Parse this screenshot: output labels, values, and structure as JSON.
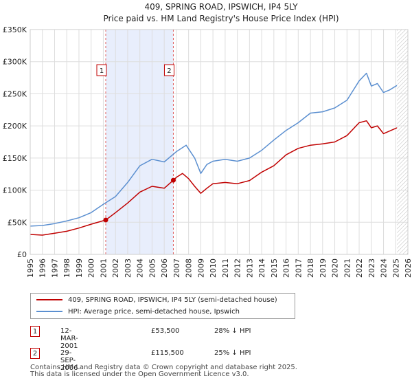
{
  "chart_data": {
    "type": "line",
    "title": "409, SPRING ROAD, IPSWICH, IP4 5LY",
    "subtitle": "Price paid vs. HM Land Registry's House Price Index (HPI)",
    "xlim": [
      1995,
      2026
    ],
    "ylim": [
      0,
      350000
    ],
    "x_ticks": [
      "1995",
      "1996",
      "1997",
      "1998",
      "1999",
      "2000",
      "2001",
      "2002",
      "2003",
      "2004",
      "2005",
      "2006",
      "2007",
      "2008",
      "2009",
      "2010",
      "2011",
      "2012",
      "2013",
      "2014",
      "2015",
      "2016",
      "2017",
      "2018",
      "2019",
      "2020",
      "2021",
      "2022",
      "2023",
      "2024",
      "2025",
      "2026"
    ],
    "y_ticks": [
      {
        "value": 0,
        "label": "£0"
      },
      {
        "value": 50000,
        "label": "£50K"
      },
      {
        "value": 100000,
        "label": "£100K"
      },
      {
        "value": 150000,
        "label": "£150K"
      },
      {
        "value": 200000,
        "label": "£200K"
      },
      {
        "value": 250000,
        "label": "£250K"
      },
      {
        "value": 300000,
        "label": "£300K"
      },
      {
        "value": 350000,
        "label": "£350K"
      }
    ],
    "grid": true,
    "shaded_period": [
      2001.2,
      2006.75
    ],
    "forecast_hatch_start": 2025.1,
    "series": [
      {
        "name": "409, SPRING ROAD, IPSWICH, IP4 5LY (semi-detached house)",
        "color": "#c00000",
        "x": [
          1995,
          1996,
          1997,
          1998,
          1999,
          2000,
          2001.2,
          2002,
          2003,
          2004,
          2005,
          2006,
          2006.75,
          2007,
          2007.5,
          2008,
          2008.5,
          2009,
          2009.5,
          2010,
          2011,
          2012,
          2013,
          2014,
          2015,
          2016,
          2017,
          2018,
          2019,
          2020,
          2021,
          2022,
          2022.6,
          2023,
          2023.5,
          2024,
          2024.5,
          2025.1
        ],
        "y": [
          31000,
          30000,
          33000,
          36000,
          41000,
          47000,
          53500,
          65000,
          80000,
          97000,
          106000,
          103000,
          115500,
          120000,
          126000,
          118000,
          106000,
          95000,
          103000,
          110000,
          112000,
          110000,
          115000,
          128000,
          138000,
          155000,
          165000,
          170000,
          172000,
          175000,
          185000,
          205000,
          208000,
          197000,
          200000,
          188000,
          192000,
          197000
        ]
      },
      {
        "name": "HPI: Average price, semi-detached house, Ipswich",
        "color": "#5b8fd0",
        "x": [
          1995,
          1996,
          1997,
          1998,
          1999,
          2000,
          2001,
          2002,
          2003,
          2004,
          2005,
          2006,
          2007,
          2007.8,
          2008.5,
          2009,
          2009.5,
          2010,
          2011,
          2012,
          2013,
          2014,
          2015,
          2016,
          2017,
          2018,
          2019,
          2020,
          2021,
          2022,
          2022.6,
          2023,
          2023.5,
          2024,
          2024.5,
          2025.1
        ],
        "y": [
          44000,
          45000,
          48000,
          52000,
          57000,
          65000,
          78000,
          90000,
          112000,
          138000,
          148000,
          144000,
          160000,
          170000,
          150000,
          126000,
          140000,
          145000,
          148000,
          145000,
          150000,
          162000,
          178000,
          193000,
          205000,
          220000,
          222000,
          228000,
          240000,
          270000,
          282000,
          262000,
          266000,
          252000,
          256000,
          263000
        ]
      }
    ],
    "sale_markers": [
      {
        "label": "1",
        "x": 2001.2,
        "y": 53500
      },
      {
        "label": "2",
        "x": 2006.75,
        "y": 115500
      }
    ]
  },
  "legend": {
    "items": [
      {
        "label": "409, SPRING ROAD, IPSWICH, IP4 5LY (semi-detached house)",
        "color": "#c00000"
      },
      {
        "label": "HPI: Average price, semi-detached house, Ipswich",
        "color": "#5b8fd0"
      }
    ]
  },
  "sales": [
    {
      "num": "1",
      "date": "12-MAR-2001",
      "price": "£53,500",
      "hpi": "28% ↓ HPI"
    },
    {
      "num": "2",
      "date": "29-SEP-2006",
      "price": "£115,500",
      "hpi": "25% ↓ HPI"
    }
  ],
  "footer": {
    "line1": "Contains HM Land Registry data © Crown copyright and database right 2025.",
    "line2": "This data is licensed under the Open Government Licence v3.0."
  }
}
